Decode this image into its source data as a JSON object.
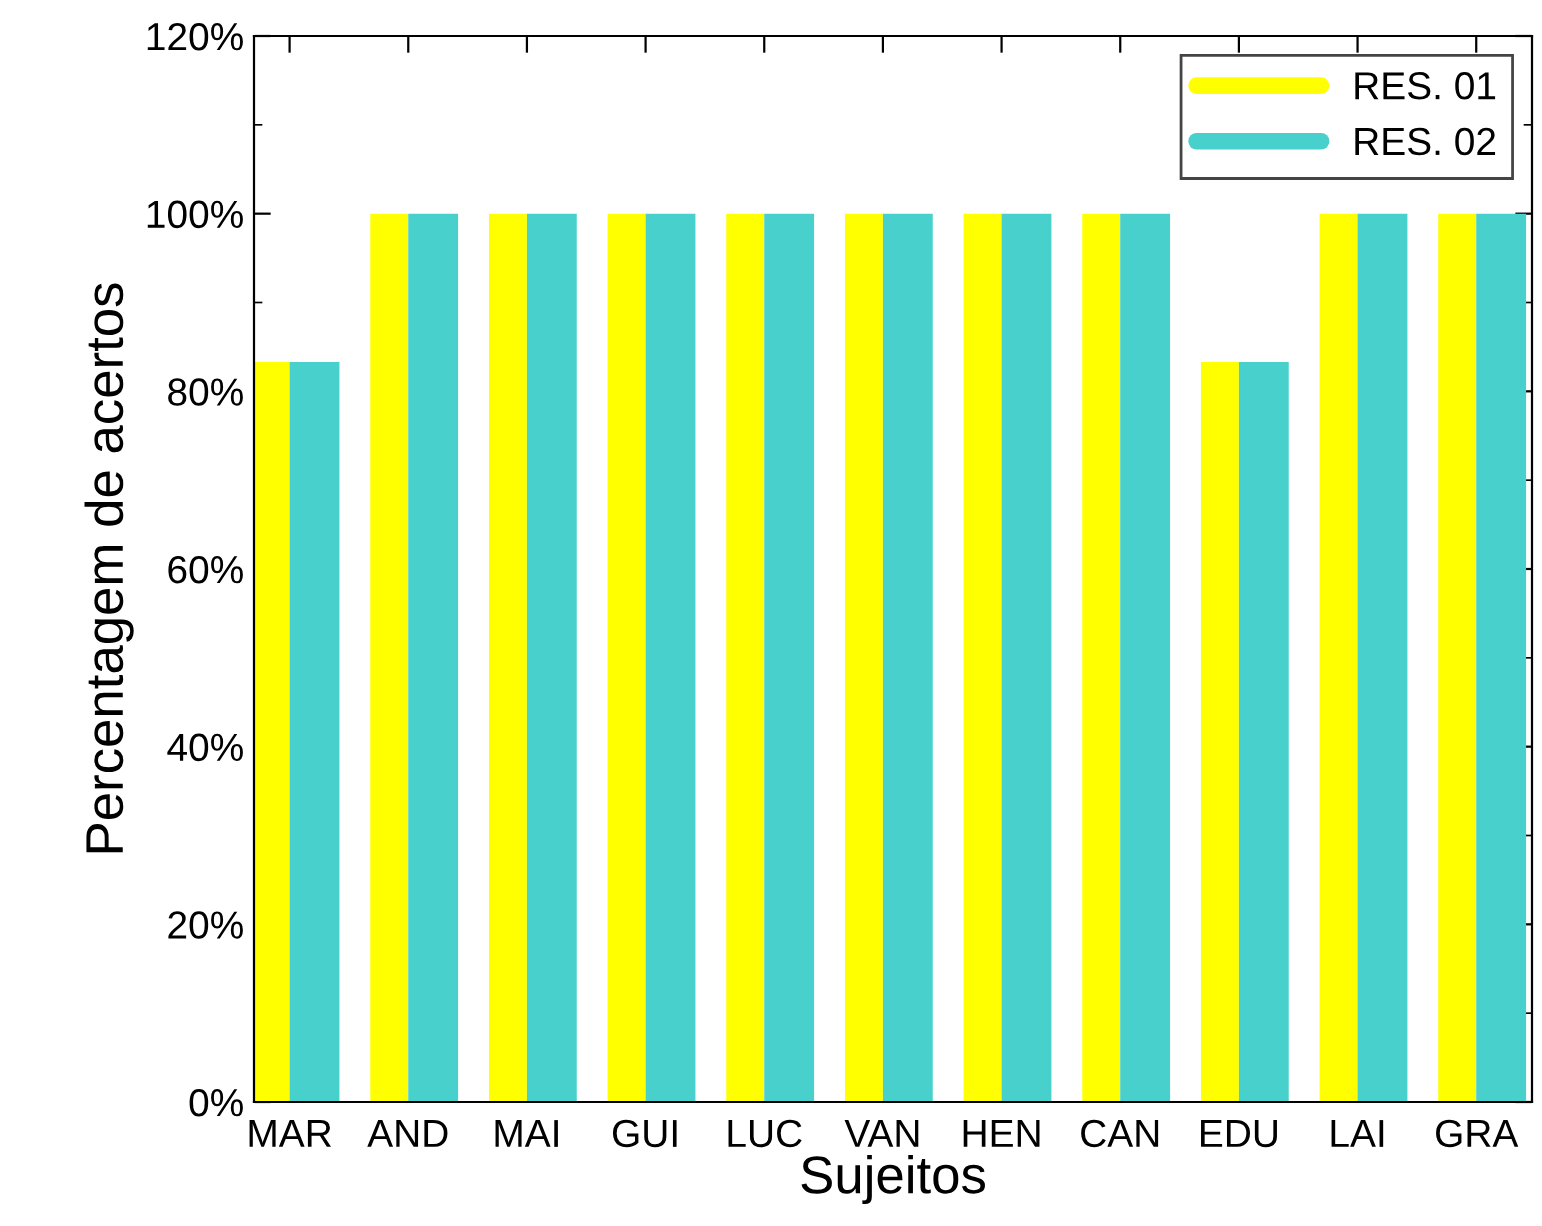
{
  "chart_data": {
    "type": "bar",
    "xlabel": "Sujeitos",
    "ylabel": "Percentagem de acertos",
    "categories": [
      "MAR",
      "AND",
      "MAI",
      "GUI",
      "LUC",
      "VAN",
      "HEN",
      "CAN",
      "EDU",
      "LAI",
      "GRA"
    ],
    "series": [
      {
        "name": "RES. 01",
        "color": "#ffff00",
        "values": [
          83.3,
          100,
          100,
          100,
          100,
          100,
          100,
          100,
          83.3,
          100,
          100
        ]
      },
      {
        "name": "RES. 02",
        "color": "#48d1cc",
        "values": [
          83.3,
          100,
          100,
          100,
          100,
          100,
          100,
          100,
          83.3,
          100,
          100
        ]
      }
    ],
    "ylim": [
      0,
      120
    ],
    "yticks": [
      {
        "value": 0,
        "label": "0%"
      },
      {
        "value": 20,
        "label": "20%"
      },
      {
        "value": 40,
        "label": "40%"
      },
      {
        "value": 60,
        "label": "60%"
      },
      {
        "value": 80,
        "label": "80%"
      },
      {
        "value": 100,
        "label": "100%"
      },
      {
        "value": 120,
        "label": "120%"
      }
    ],
    "legend": "top right",
    "grid": false
  }
}
